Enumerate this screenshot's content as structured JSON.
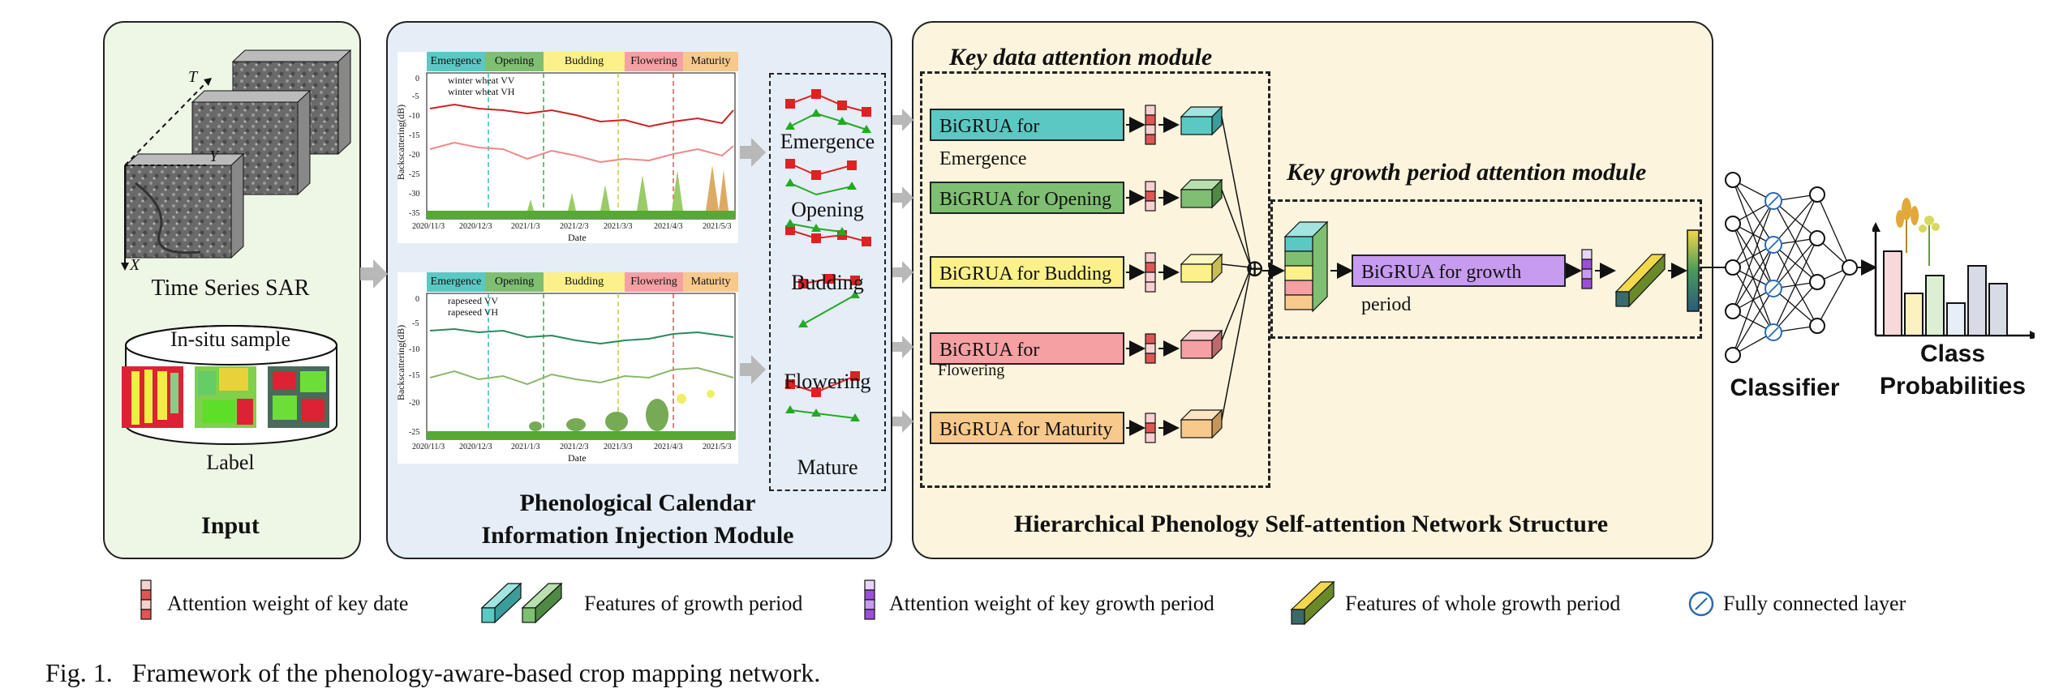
{
  "input": {
    "title": "Input",
    "sar_label": "Time Series SAR",
    "axis_t": "T",
    "axis_y": "Y",
    "axis_x": "X",
    "insitu_label": "In-situ sample",
    "label_text": "Label"
  },
  "phenology_module": {
    "title_line1": "Phenological Calendar",
    "title_line2": "Information Injection Module",
    "phases": [
      "Emergence",
      "Opening",
      "Budding",
      "Flowering",
      "Maturity"
    ],
    "phase_colors": [
      "#5cc8c4",
      "#7fbf72",
      "#fbf08a",
      "#f5a0a3",
      "#f8c98c"
    ],
    "chart_wheat": {
      "legend": [
        "winter wheat VV",
        "winter wheat VH"
      ],
      "ylabel": "Backscattering(dB)",
      "xlabel": "Date",
      "yticks": [
        "0",
        "-5",
        "-10",
        "-15",
        "-20",
        "-25",
        "-30",
        "-35"
      ],
      "xticks": [
        "2020/11/3",
        "2020/12/3",
        "2021/1/3",
        "2021/2/3",
        "2021/3/3",
        "2021/4/3",
        "2021/5/3"
      ]
    },
    "chart_rapeseed": {
      "legend": [
        "rapeseed VV",
        "rapeseed VH"
      ],
      "ylabel": "Backscattering(dB)",
      "xlabel": "Date",
      "yticks": [
        "0",
        "-5",
        "-10",
        "-15",
        "-20",
        "-25"
      ],
      "xticks": [
        "2020/11/3",
        "2020/12/3",
        "2021/1/3",
        "2021/2/3",
        "2021/3/3",
        "2021/4/3",
        "2021/5/3"
      ]
    },
    "stage_labels": [
      "Emergence",
      "Opening",
      "Budding",
      "Flowering",
      "Mature"
    ]
  },
  "network": {
    "title": "Hierarchical Phenology Self-attention Network Structure",
    "key_data_title": "Key data attention module",
    "key_growth_title": "Key growth period attention module",
    "modules": [
      {
        "label": "BiGRUA for Emergence",
        "color": "#5cc8c4"
      },
      {
        "label": "BiGRUA for Opening",
        "color": "#7fbf72"
      },
      {
        "label": "BiGRUA for Budding",
        "color": "#fbf08a"
      },
      {
        "label": "BiGRUA for",
        "label2": "Flowering",
        "color": "#f5a0a3"
      },
      {
        "label": "BiGRUA for Maturity",
        "color": "#f8c98c"
      }
    ],
    "growth_module": {
      "label": "BiGRUA for growth period",
      "color": "#c79bf0"
    },
    "plus_symbol": "⊕"
  },
  "classifier": {
    "label": "Classifier",
    "output_line1": "Class",
    "output_line2": "Probabilities",
    "fc_glyph": "ʃ"
  },
  "legend": {
    "items": [
      "Attention weight of key date",
      "Features of growth period",
      "Attention weight of key growth period",
      "Features of whole growth period",
      "Fully connected layer"
    ]
  },
  "caption": "Fig. 1.   Framework of the phenology-aware-based crop mapping network."
}
